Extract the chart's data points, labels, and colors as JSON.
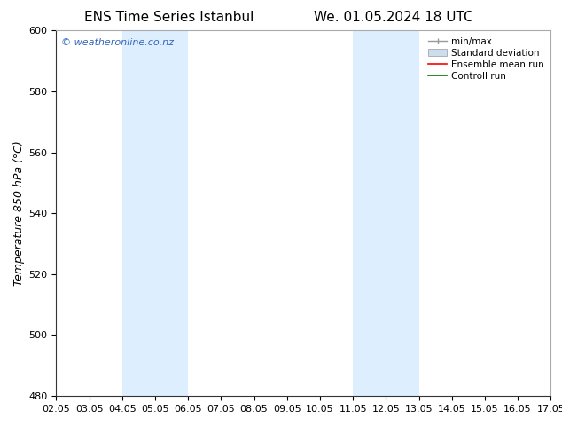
{
  "title_left": "ENS Time Series Istanbul",
  "title_right": "We. 01.05.2024 18 UTC",
  "ylabel": "Temperature 850 hPa (°C)",
  "ylim": [
    480,
    600
  ],
  "yticks": [
    480,
    500,
    520,
    540,
    560,
    580,
    600
  ],
  "xlim": [
    0,
    15
  ],
  "xtick_positions": [
    0,
    1,
    2,
    3,
    4,
    5,
    6,
    7,
    8,
    9,
    10,
    11,
    12,
    13,
    14,
    15
  ],
  "xtick_labels": [
    "02.05",
    "03.05",
    "04.05",
    "05.05",
    "06.05",
    "07.05",
    "08.05",
    "09.05",
    "10.05",
    "11.05",
    "12.05",
    "13.05",
    "14.05",
    "15.05",
    "16.05",
    "17.05"
  ],
  "bg_color": "#ffffff",
  "plot_bg_color": "#ffffff",
  "shaded_bands": [
    {
      "x_start": 2,
      "x_end": 4,
      "color": "#ddeeff"
    },
    {
      "x_start": 9,
      "x_end": 11,
      "color": "#ddeeff"
    }
  ],
  "watermark_text": "© weatheronline.co.nz",
  "watermark_color": "#3366bb",
  "legend_labels": [
    "min/max",
    "Standard deviation",
    "Ensemble mean run",
    "Controll run"
  ],
  "legend_line_color": "#999999",
  "legend_patch_color": "#ccddee",
  "legend_patch_edge": "#999999",
  "legend_red": "#ff0000",
  "legend_green": "#007700",
  "title_fontsize": 11,
  "axis_label_fontsize": 9,
  "tick_fontsize": 8,
  "watermark_fontsize": 8,
  "legend_fontsize": 7.5
}
